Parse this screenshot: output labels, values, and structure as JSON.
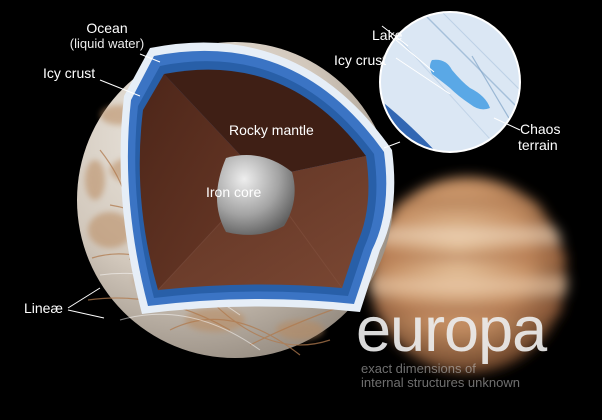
{
  "labels": {
    "ocean": "Ocean",
    "ocean_sub": "(liquid water)",
    "icy_crust_left": "Icy crust",
    "rocky_mantle": "Rocky mantle",
    "iron_core": "Iron core",
    "lineae": "Lineæ",
    "lake": "Lake",
    "icy_crust_inset": "Icy crust",
    "chaos": "Chaos",
    "terrain": "terrain"
  },
  "title": "europa",
  "note": {
    "line1": "exact dimensions of",
    "line2": "internal structures unknown"
  },
  "colors": {
    "background": "#000000",
    "ocean": "#3b74c4",
    "ice": "#e4edf6",
    "mantle": "#5c2f22",
    "core": "#a9a9a9",
    "surface": "#d8d3cc",
    "jupiter": "#c99a6f"
  }
}
